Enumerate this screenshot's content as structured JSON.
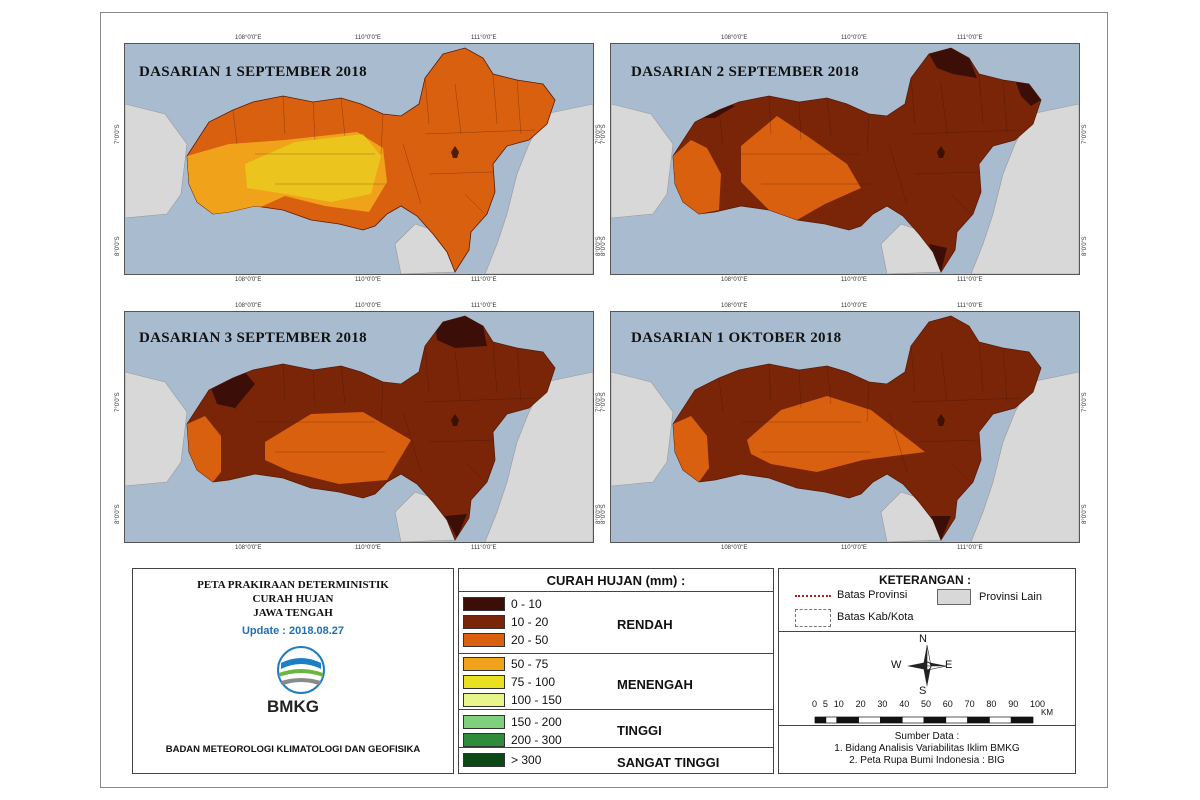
{
  "panels": [
    {
      "title": "DASARIAN 1 SEPTEMBER 2018",
      "scheme": "sep1"
    },
    {
      "title": "DASARIAN 2 SEPTEMBER 2018",
      "scheme": "sep2"
    },
    {
      "title": "DASARIAN 3 SEPTEMBER 2018",
      "scheme": "sep3"
    },
    {
      "title": "DASARIAN 1 OKTOBER 2018",
      "scheme": "okt1"
    }
  ],
  "coords": {
    "lon": [
      "108°0'0\"E",
      "110°0'0\"E",
      "111°0'0\"E"
    ],
    "lat": [
      "7°0'0\"S",
      "8°0'0\"S"
    ]
  },
  "colors": {
    "sea": "#a9bccf",
    "other_province": "#d8d8d8",
    "c0_10": "#3b0f07",
    "c10_20": "#7a2508",
    "c20_50": "#d8600f",
    "c50_75": "#f0a21a",
    "c75_100": "#e8e020",
    "c100_150": "#e7f58a",
    "c150_200": "#7fd07a",
    "c200_300": "#2f8c3a",
    "c300": "#0b4a16"
  },
  "info": {
    "title_line1": "PETA PRAKIRAAN DETERMINISTIK",
    "title_line2": "CURAH HUJAN",
    "title_line3": "JAWA TENGAH",
    "update": "Update : 2018.08.27",
    "logo_text": "BMKG",
    "agency": "BADAN METEOROLOGI KLIMATOLOGI DAN GEOFISIKA"
  },
  "legend": {
    "header": "CURAH HUJAN (mm) :",
    "ranges": [
      "0 - 10",
      "10 - 20",
      "20 - 50",
      "50 - 75",
      "75 - 100",
      "100 - 150",
      "150 - 200",
      "200 - 300",
      "> 300"
    ],
    "categories": [
      "RENDAH",
      "MENENGAH",
      "TINGGI",
      "SANGAT TINGGI"
    ]
  },
  "keterangan": {
    "header": "KETERANGAN :",
    "batas_provinsi": "Batas Provinsi",
    "batas_kab": "Batas Kab/Kota",
    "provinsi_lain": "Provinsi Lain",
    "compass": {
      "n": "N",
      "s": "S",
      "e": "E",
      "w": "W"
    },
    "scale_labels": [
      "0",
      "5",
      "10",
      "20",
      "30",
      "40",
      "50",
      "60",
      "70",
      "80",
      "90",
      "100"
    ],
    "scale_unit": "KM",
    "source_header": "Sumber Data :",
    "source_1": "1. Bidang Analisis Variabilitas Iklim BMKG",
    "source_2": "2. Peta Rupa Bumi Indonesia : BIG"
  }
}
